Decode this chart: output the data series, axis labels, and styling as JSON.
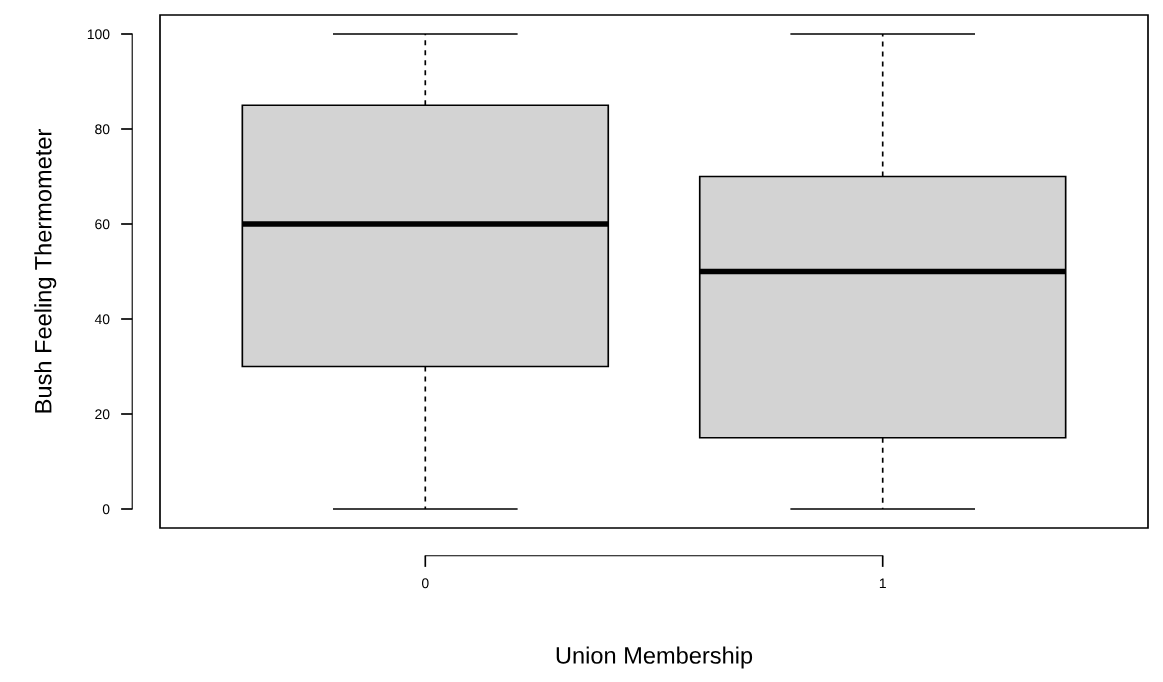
{
  "chart_data": {
    "type": "box",
    "xlabel": "Union Membership",
    "ylabel": "Bush Feeling Thermometer",
    "categories": [
      "0",
      "1"
    ],
    "boxes": [
      {
        "low": 0,
        "q1": 30,
        "median": 60,
        "q3": 85,
        "high": 100
      },
      {
        "low": 0,
        "q1": 15,
        "median": 50,
        "q3": 70,
        "high": 100
      }
    ],
    "color": "#d3d3d3",
    "ylim": [
      -4,
      104
    ],
    "yticks": [
      0,
      20,
      40,
      60,
      80,
      100
    ],
    "grid": false
  }
}
